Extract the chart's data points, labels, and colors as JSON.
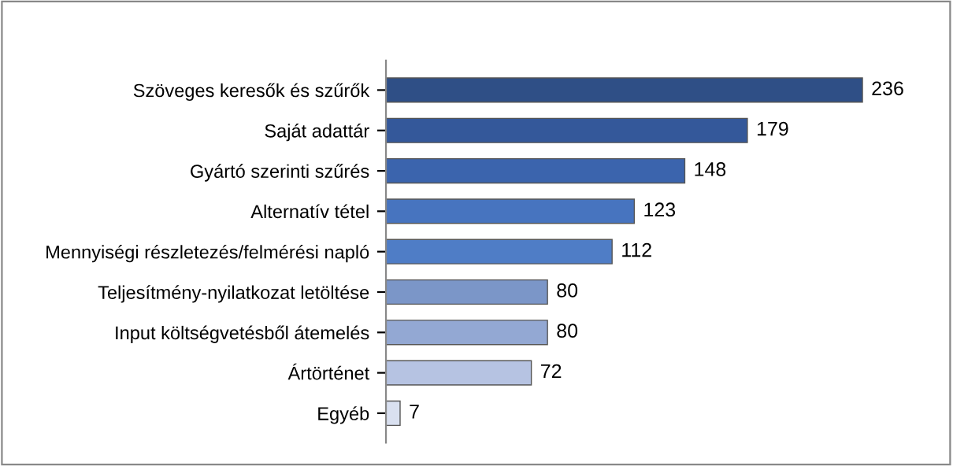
{
  "chart_data": {
    "type": "bar",
    "orientation": "horizontal",
    "categories": [
      "Szöveges keresők és szűrők",
      "Saját adattár",
      "Gyártó szerinti szűrés",
      "Alternatív tétel",
      "Mennyiségi részletezés/felmérési napló",
      "Teljesítmény-nyilatkozat letöltése",
      "Input költségvetésből átemelés",
      "Ártörténet",
      "Egyéb"
    ],
    "values": [
      236,
      179,
      148,
      123,
      112,
      80,
      80,
      72,
      7
    ],
    "colors": [
      "#2f4f86",
      "#34589a",
      "#3b64ad",
      "#4774bf",
      "#4f7dc6",
      "#7b96c8",
      "#93a8d3",
      "#b6c3e2",
      "#d9e0f0"
    ],
    "data_labels": true,
    "grid": false,
    "legend": false
  }
}
